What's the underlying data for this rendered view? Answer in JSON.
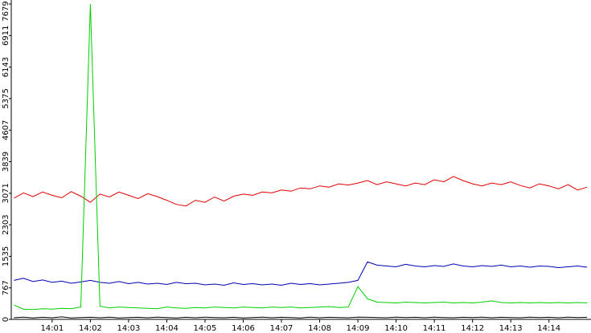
{
  "chart_data": {
    "type": "line",
    "x": [
      0,
      0.25,
      0.5,
      0.75,
      1,
      1.25,
      1.5,
      1.75,
      2,
      2.25,
      2.5,
      2.75,
      3,
      3.25,
      3.5,
      3.75,
      4,
      4.25,
      4.5,
      4.75,
      5,
      5.25,
      5.5,
      5.75,
      6,
      6.25,
      6.5,
      6.75,
      7,
      7.25,
      7.5,
      7.75,
      8,
      8.25,
      8.5,
      8.75,
      9,
      9.25,
      9.5,
      9.75,
      10,
      10.25,
      10.5,
      10.75,
      11,
      11.25,
      11.5,
      11.75,
      12,
      12.25,
      12.5,
      12.75,
      13,
      13.25,
      13.5,
      13.75,
      14,
      14.25,
      14.5,
      14.75,
      15
    ],
    "xlim": [
      -0.07,
      15.1
    ],
    "xticks": [
      {
        "value": 1,
        "label": "14:01"
      },
      {
        "value": 2,
        "label": "14:02"
      },
      {
        "value": 3,
        "label": "14:03"
      },
      {
        "value": 4,
        "label": "14:04"
      },
      {
        "value": 5,
        "label": "14:05"
      },
      {
        "value": 6,
        "label": "14:06"
      },
      {
        "value": 7,
        "label": "14:07"
      },
      {
        "value": 8,
        "label": "14:08"
      },
      {
        "value": 9,
        "label": "14:09"
      },
      {
        "value": 10,
        "label": "14:10"
      },
      {
        "value": 11,
        "label": "14:11"
      },
      {
        "value": 12,
        "label": "14:12"
      },
      {
        "value": 13,
        "label": "14:13"
      },
      {
        "value": 14,
        "label": "14:14"
      }
    ],
    "ylim": [
      0,
      7679
    ],
    "yticks": [
      0,
      767,
      1535,
      2303,
      3071,
      3839,
      4607,
      5375,
      6143,
      6911,
      7679
    ],
    "series": [
      {
        "color": "#e00000",
        "values": [
          2950,
          3080,
          2990,
          3100,
          3020,
          2960,
          3110,
          3000,
          2850,
          3050,
          2980,
          3100,
          3020,
          2940,
          3060,
          2990,
          2900,
          2800,
          2760,
          2900,
          2850,
          2980,
          2880,
          3000,
          3050,
          3020,
          3100,
          3080,
          3150,
          3120,
          3200,
          3180,
          3250,
          3220,
          3300,
          3270,
          3320,
          3380,
          3280,
          3350,
          3300,
          3250,
          3320,
          3280,
          3400,
          3350,
          3480,
          3380,
          3300,
          3250,
          3320,
          3280,
          3350,
          3260,
          3200,
          3300,
          3250,
          3180,
          3280,
          3150,
          3220
        ]
      },
      {
        "color": "#0000b0",
        "values": [
          950,
          1000,
          920,
          960,
          900,
          930,
          880,
          910,
          950,
          900,
          880,
          920,
          870,
          900,
          860,
          880,
          850,
          900,
          870,
          880,
          840,
          860,
          830,
          890,
          850,
          870,
          840,
          860,
          830,
          880,
          850,
          870,
          840,
          860,
          880,
          900,
          950,
          1400,
          1320,
          1300,
          1280,
          1340,
          1300,
          1280,
          1310,
          1290,
          1350,
          1300,
          1280,
          1310,
          1290,
          1320,
          1280,
          1300,
          1270,
          1300,
          1290,
          1260,
          1280,
          1300,
          1270
        ]
      },
      {
        "color": "#00d000",
        "values": [
          350,
          250,
          240,
          260,
          250,
          270,
          260,
          300,
          7679,
          320,
          280,
          300,
          290,
          280,
          270,
          260,
          300,
          280,
          270,
          290,
          280,
          300,
          290,
          280,
          300,
          290,
          280,
          300,
          290,
          300,
          280,
          290,
          300,
          310,
          290,
          300,
          800,
          500,
          420,
          410,
          400,
          420,
          410,
          400,
          410,
          420,
          400,
          410,
          400,
          420,
          450,
          410,
          400,
          410,
          400,
          410,
          400,
          410,
          400,
          410,
          400
        ]
      },
      {
        "color": "#000000",
        "values": [
          40,
          55,
          35,
          50,
          40,
          60,
          35,
          45,
          50,
          40,
          55,
          35,
          45,
          50,
          40,
          55,
          45,
          35,
          50,
          40,
          55,
          45,
          40,
          50,
          35,
          45,
          55,
          40,
          50,
          45,
          35,
          55,
          40,
          50,
          45,
          40,
          55,
          50,
          45,
          40,
          55,
          45,
          50,
          40,
          55,
          45,
          40,
          50,
          45,
          55,
          40,
          50,
          45,
          40,
          55,
          45,
          50,
          40,
          55,
          45,
          50
        ]
      }
    ]
  }
}
